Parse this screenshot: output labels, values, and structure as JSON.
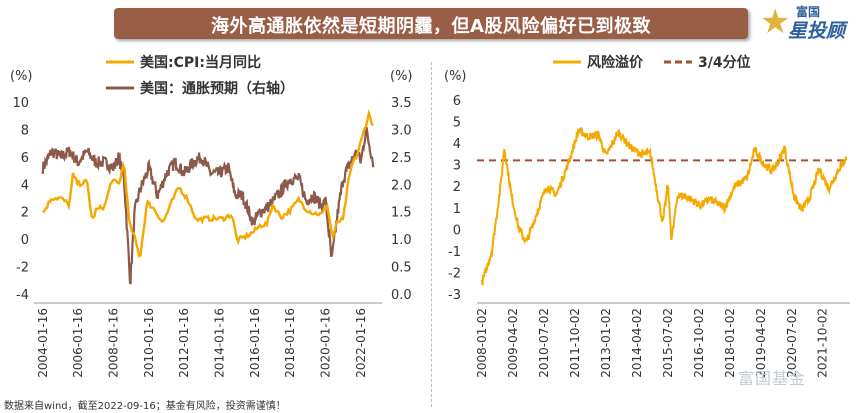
{
  "title": "海外高通胀依然是短期阴霾，但A股风险偏好已到极致",
  "logo": {
    "top": "富国",
    "main": "星投顾"
  },
  "watermark": "富国基金",
  "footnote": "数据来自wind，截至2022-09-16；基金有风险，投资需谨慎！",
  "colors": {
    "orange": "#f5a800",
    "brown": "#8b5a4a",
    "title_bg": "#9a5e47"
  },
  "chart_data": [
    {
      "type": "line",
      "legend_position": "top",
      "yunit_left": "(%)",
      "yunit_right": "(%)",
      "ylim_left": [
        -4,
        10
      ],
      "ylim_right": [
        0.0,
        3.5
      ],
      "yticks_left": [
        "10",
        "8",
        "6",
        "4",
        "2",
        "0",
        "-2",
        "-4"
      ],
      "yticks_right": [
        "3.5",
        "3.0",
        "2.5",
        "2.0",
        "1.5",
        "1.0",
        "0.5",
        "0.0"
      ],
      "xticks": [
        "2004-01-16",
        "2006-01-16",
        "2008-01-16",
        "2010-01-16",
        "2012-01-16",
        "2014-01-16",
        "2016-01-16",
        "2018-01-16",
        "2020-01-16",
        "2022-01-16"
      ],
      "series": [
        {
          "name": "美国:CPI:当月同比",
          "axis": "left",
          "color": "#f5a800",
          "x": [
            2004.0,
            2004.5,
            2005.0,
            2005.5,
            2005.7,
            2006.0,
            2006.5,
            2006.8,
            2007.0,
            2007.5,
            2007.9,
            2008.3,
            2008.6,
            2008.9,
            2009.2,
            2009.5,
            2009.9,
            2010.3,
            2010.8,
            2011.3,
            2011.7,
            2012.2,
            2012.7,
            2013.2,
            2013.7,
            2014.2,
            2014.7,
            2015.0,
            2015.5,
            2015.9,
            2016.3,
            2016.7,
            2017.0,
            2017.5,
            2018.0,
            2018.5,
            2018.9,
            2019.3,
            2019.8,
            2020.1,
            2020.4,
            2020.7,
            2021.0,
            2021.3,
            2021.5,
            2021.8,
            2022.1,
            2022.45,
            2022.7
          ],
          "values": [
            1.9,
            3.0,
            3.0,
            2.5,
            4.7,
            4.0,
            4.2,
            1.3,
            2.1,
            2.4,
            4.3,
            4.0,
            5.6,
            1.1,
            0.1,
            -1.4,
            2.7,
            2.2,
            1.2,
            2.7,
            3.8,
            2.9,
            1.4,
            1.5,
            1.5,
            1.5,
            1.8,
            -0.1,
            0.2,
            0.5,
            1.0,
            1.1,
            2.5,
            1.6,
            2.1,
            2.9,
            2.2,
            1.9,
            1.8,
            2.5,
            0.1,
            1.3,
            1.4,
            4.2,
            5.4,
            6.2,
            7.5,
            9.1,
            8.3
          ]
        },
        {
          "name": "美国：通胀预期（右轴）",
          "axis": "right",
          "color": "#8b5a4a",
          "x": [
            2004.0,
            2004.5,
            2005.0,
            2005.5,
            2006.0,
            2006.5,
            2007.0,
            2007.5,
            2008.0,
            2008.3,
            2008.6,
            2008.8,
            2008.95,
            2009.2,
            2009.5,
            2010.0,
            2010.5,
            2011.0,
            2011.5,
            2012.0,
            2012.5,
            2013.0,
            2013.5,
            2014.0,
            2014.5,
            2014.9,
            2015.3,
            2015.9,
            2016.3,
            2016.8,
            2017.3,
            2018.0,
            2018.5,
            2018.9,
            2019.3,
            2019.8,
            2020.0,
            2020.2,
            2020.35,
            2020.7,
            2021.0,
            2021.4,
            2021.8,
            2022.0,
            2022.3,
            2022.5,
            2022.7
          ],
          "values": [
            2.3,
            2.6,
            2.5,
            2.6,
            2.4,
            2.6,
            2.4,
            2.4,
            2.3,
            2.5,
            2.1,
            1.0,
            0.2,
            1.5,
            1.9,
            2.3,
            1.8,
            2.2,
            2.4,
            2.2,
            2.4,
            2.5,
            2.2,
            2.2,
            2.3,
            1.8,
            1.8,
            1.3,
            1.5,
            1.6,
            1.8,
            2.1,
            2.1,
            1.7,
            1.8,
            1.6,
            1.7,
            1.1,
            0.6,
            1.5,
            2.1,
            2.4,
            2.6,
            2.4,
            3.0,
            2.7,
            2.4
          ]
        }
      ]
    },
    {
      "type": "line",
      "legend_position": "top",
      "yunit_left": "(%)",
      "ylim": [
        -3,
        6
      ],
      "yticks": [
        "6",
        "5",
        "4",
        "3",
        "2",
        "1",
        "0",
        "-1",
        "-2",
        "-3"
      ],
      "xticks": [
        "2008-01-02",
        "2009-04-02",
        "2010-07-02",
        "2011-10-02",
        "2013-01-02",
        "2014-04-02",
        "2015-07-02",
        "2016-10-02",
        "2018-01-02",
        "2019-04-02",
        "2020-07-02",
        "2021-10-02"
      ],
      "reference_line": {
        "name": "3/4分位",
        "value": 3.2,
        "color": "#a0522d"
      },
      "series": [
        {
          "name": "风险溢价",
          "color": "#f5a800",
          "x": [
            2008.0,
            2008.4,
            2008.75,
            2008.9,
            2009.2,
            2009.5,
            2009.8,
            2010.2,
            2010.6,
            2011.0,
            2011.5,
            2011.9,
            2012.3,
            2012.7,
            2013.0,
            2013.5,
            2014.0,
            2014.4,
            2014.8,
            2015.1,
            2015.3,
            2015.5,
            2015.65,
            2015.9,
            2016.3,
            2016.8,
            2017.2,
            2017.8,
            2018.2,
            2018.7,
            2019.0,
            2019.4,
            2019.7,
            2020.0,
            2020.2,
            2020.6,
            2020.9,
            2021.2,
            2021.6,
            2022.0,
            2022.4,
            2022.7
          ],
          "values": [
            -2.5,
            -1.0,
            2.0,
            3.8,
            1.5,
            0.0,
            -0.6,
            0.7,
            2.0,
            1.6,
            3.1,
            4.6,
            4.3,
            4.4,
            3.4,
            4.5,
            3.8,
            3.5,
            3.5,
            1.5,
            0.3,
            2.1,
            -0.5,
            1.6,
            1.5,
            1.1,
            1.4,
            1.0,
            2.0,
            2.4,
            3.7,
            3.0,
            2.7,
            3.2,
            3.8,
            1.5,
            0.9,
            1.4,
            2.8,
            1.9,
            2.8,
            3.3
          ]
        }
      ]
    }
  ]
}
